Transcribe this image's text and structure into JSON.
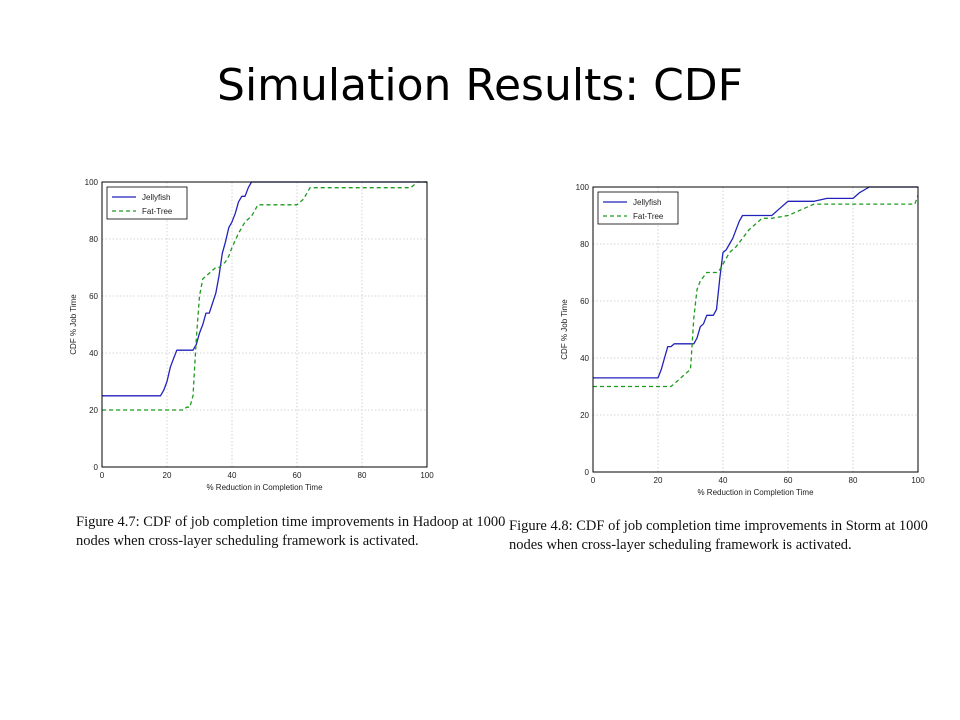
{
  "slide": {
    "title": "Simulation Results: CDF"
  },
  "captions": [
    {
      "line1": "Figure 4.7: CDF of job completion time improvements in Hadoop at 1000",
      "line2": "nodes when cross-layer scheduling framework is activated."
    },
    {
      "line1": "Figure 4.8: CDF of job completion time improvements in Storm at 1000",
      "line2": "nodes when cross-layer scheduling framework is activated."
    }
  ],
  "colors": {
    "jellyfish": "#2222bb",
    "fattree": "#1e9a1e",
    "grid": "#c8c8c8"
  },
  "chart_data": [
    {
      "type": "line",
      "title": "",
      "xlabel": "% Reduction in Completion Time",
      "ylabel": "CDF % Job Time",
      "xlim": [
        0,
        100
      ],
      "ylim": [
        0,
        100
      ],
      "xticks": [
        "0",
        "20",
        "40",
        "60",
        "80",
        "100"
      ],
      "yticks": [
        "0",
        "20",
        "40",
        "60",
        "80",
        "100"
      ],
      "grid": true,
      "legend": "top-left",
      "series": [
        {
          "name": "Jellyfish",
          "style": "solid",
          "x": [
            0,
            18,
            19,
            20,
            21,
            22,
            23,
            28,
            29,
            30,
            31,
            32,
            33,
            35,
            36,
            37,
            38,
            39,
            40,
            41,
            42,
            43,
            44,
            45,
            46,
            100
          ],
          "y": [
            25,
            25,
            27,
            30,
            35,
            38,
            41,
            41,
            43,
            47,
            50,
            54,
            54,
            61,
            67,
            75,
            79,
            84,
            86,
            89,
            93,
            95,
            95,
            98,
            100,
            100
          ]
        },
        {
          "name": "Fat-Tree",
          "style": "dashed",
          "x": [
            0,
            25,
            26,
            27,
            28,
            29,
            30,
            31,
            33,
            35,
            36,
            37,
            38,
            39,
            40,
            42,
            44,
            46,
            48,
            60,
            62,
            63,
            64,
            95,
            97,
            100
          ],
          "y": [
            20,
            20,
            21,
            21,
            25,
            45,
            60,
            66,
            68,
            70,
            70,
            71,
            72,
            74,
            77,
            82,
            86,
            88,
            92,
            92,
            94,
            96,
            98,
            98,
            100,
            100
          ]
        }
      ]
    },
    {
      "type": "line",
      "title": "",
      "xlabel": "% Reduction in Completion Time",
      "ylabel": "CDF % Job Time",
      "xlim": [
        0,
        100
      ],
      "ylim": [
        0,
        100
      ],
      "xticks": [
        "0",
        "20",
        "40",
        "60",
        "80",
        "100"
      ],
      "yticks": [
        "0",
        "20",
        "40",
        "60",
        "80",
        "100"
      ],
      "grid": true,
      "legend": "top-left",
      "series": [
        {
          "name": "Jellyfish",
          "style": "solid",
          "x": [
            0,
            20,
            21,
            22,
            23,
            24,
            25,
            31,
            32,
            33,
            34,
            35,
            36,
            37,
            38,
            39,
            40,
            41,
            42,
            43,
            44,
            45,
            46,
            47,
            55,
            57,
            60,
            68,
            72,
            80,
            82,
            85,
            100
          ],
          "y": [
            33,
            33,
            36,
            40,
            44,
            44,
            45,
            45,
            47,
            51,
            52,
            55,
            55,
            55,
            57,
            68,
            77,
            78,
            80,
            82,
            85,
            88,
            90,
            90,
            90,
            92,
            95,
            95,
            96,
            96,
            98,
            100,
            100
          ]
        },
        {
          "name": "Fat-Tree",
          "style": "dashed",
          "x": [
            0,
            24,
            25,
            27,
            30,
            31,
            32,
            33,
            35,
            36,
            37,
            38,
            39,
            40,
            42,
            44,
            46,
            48,
            50,
            52,
            55,
            60,
            64,
            68,
            72,
            99,
            100
          ],
          "y": [
            30,
            30,
            31,
            33,
            36,
            54,
            64,
            67,
            70,
            70,
            70,
            70,
            71,
            73,
            77,
            79,
            82,
            85,
            87,
            89,
            89,
            90,
            92,
            94,
            94,
            94,
            97
          ]
        }
      ]
    }
  ]
}
